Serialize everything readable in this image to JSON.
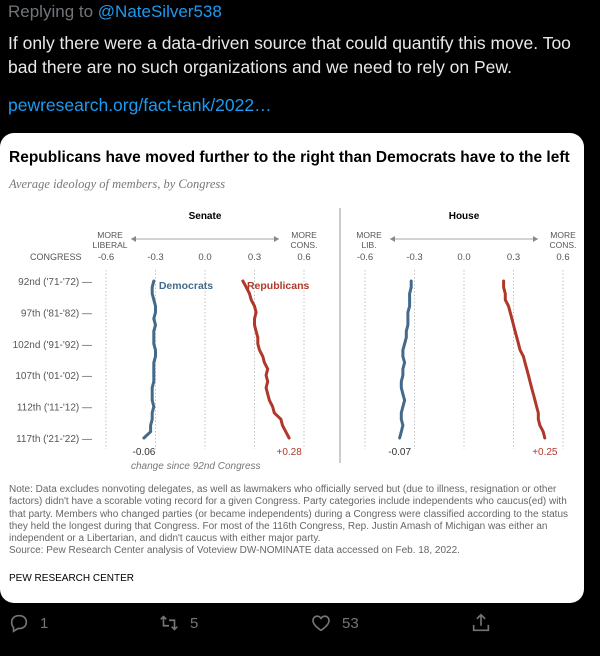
{
  "tweet": {
    "replying_prefix": "Replying to ",
    "replying_handle": "@NateSilver538",
    "text": "If only there were a data-driven source that could quantify this move. Too bad there are no such organizations and we need to rely on Pew.",
    "link": "pewresearch.org/fact-tank/2022…"
  },
  "card": {
    "title": "Republicans have moved further to the right than Democrats have to the left",
    "subtitle": "Average ideology of members, by Congress",
    "note": "Note: Data excludes nonvoting delegates, as well as lawmakers who officially served but (due to illness, resignation or other factors) didn't have a scorable voting record for a given Congress. Party categories include independents who caucus(ed) with that party. Members who changed parties (or became independents) during a Congress were classified according to the status they held the longest during that Congress. For most of the 116th Congress, Rep. Justin Amash of Michigan was either an independent or a Libertarian, and didn't caucus with either major party.",
    "source": "Source: Pew Research Center analysis of Voteview DW-NOMINATE data accessed on Feb. 18, 2022.",
    "brand": "PEW RESEARCH CENTER"
  },
  "chart_data": {
    "type": "line",
    "row_header": "CONGRESS",
    "congress_labels": [
      "92nd ('71-'72) —",
      "97th ('81-'82) —",
      "102nd ('91-'92) —",
      "107th ('01-'02) —",
      "112th ('11-'12) —",
      "117th ('21-'22) —"
    ],
    "x_ticks": [
      "-0.6",
      "-0.3",
      "0.0",
      "0.3",
      "0.6"
    ],
    "xlim": [
      -0.6,
      0.6
    ],
    "colors": {
      "Democrats": "#436a8a",
      "Republicans": "#b0382b"
    },
    "footer_caption": "change since 92nd Congress",
    "panels": [
      {
        "title": "Senate",
        "left_label": [
          "MORE",
          "LIBERAL"
        ],
        "right_label": [
          "MORE",
          "CONS."
        ],
        "series": [
          {
            "name": "Democrats",
            "change_label": "-0.06",
            "values": [
              -0.31,
              -0.32,
              -0.32,
              -0.31,
              -0.3,
              -0.3,
              -0.31,
              -0.3,
              -0.31,
              -0.31,
              -0.31,
              -0.3,
              -0.3,
              -0.31,
              -0.31,
              -0.31,
              -0.31,
              -0.32,
              -0.32,
              -0.32,
              -0.31,
              -0.32,
              -0.32,
              -0.33,
              -0.33,
              -0.37
            ]
          },
          {
            "name": "Republicans",
            "change_label": "+0.28",
            "values": [
              0.23,
              0.25,
              0.27,
              0.28,
              0.3,
              0.31,
              0.3,
              0.3,
              0.31,
              0.32,
              0.32,
              0.33,
              0.35,
              0.36,
              0.38,
              0.37,
              0.38,
              0.37,
              0.38,
              0.39,
              0.41,
              0.42,
              0.46,
              0.47,
              0.49,
              0.51
            ]
          }
        ]
      },
      {
        "title": "House",
        "left_label": [
          "MORE",
          "LIB."
        ],
        "right_label": [
          "MORE",
          "CONS."
        ],
        "series": [
          {
            "name": "Democrats",
            "change_label": "-0.07",
            "values": [
              -0.32,
              -0.32,
              -0.33,
              -0.33,
              -0.33,
              -0.34,
              -0.34,
              -0.34,
              -0.35,
              -0.35,
              -0.36,
              -0.37,
              -0.37,
              -0.36,
              -0.37,
              -0.37,
              -0.38,
              -0.38,
              -0.37,
              -0.36,
              -0.37,
              -0.38,
              -0.38,
              -0.37,
              -0.38,
              -0.39
            ]
          },
          {
            "name": "Republicans",
            "change_label": "+0.25",
            "values": [
              0.24,
              0.24,
              0.25,
              0.25,
              0.27,
              0.28,
              0.29,
              0.3,
              0.31,
              0.32,
              0.33,
              0.34,
              0.36,
              0.37,
              0.38,
              0.39,
              0.4,
              0.41,
              0.42,
              0.43,
              0.44,
              0.45,
              0.45,
              0.46,
              0.48,
              0.49
            ]
          }
        ]
      }
    ]
  },
  "actions": {
    "reply_count": "1",
    "retweet_count": "5",
    "like_count": "53"
  }
}
